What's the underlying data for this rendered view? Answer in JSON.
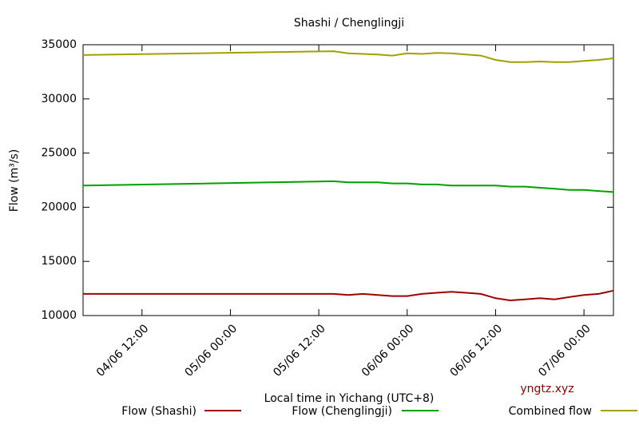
{
  "chart_data": {
    "type": "line",
    "title": "Shashi / Chenglingji",
    "xlabel": "Local time in Yichang (UTC+8)",
    "ylabel": "Flow (m³/s)",
    "watermark": "yngtz.xyz",
    "x": [
      "04/06 04:00",
      "05/06 14:00",
      "05/06 16:00",
      "05/06 18:00",
      "05/06 20:00",
      "05/06 22:00",
      "06/06 00:00",
      "06/06 02:00",
      "06/06 04:00",
      "06/06 06:00",
      "06/06 08:00",
      "06/06 10:00",
      "06/06 12:00",
      "06/06 14:00",
      "06/06 16:00",
      "06/06 18:00",
      "06/06 20:00",
      "06/06 22:00",
      "07/06 00:00",
      "07/06 02:00",
      "07/06 04:00"
    ],
    "xlim": [
      "04/06 04:00",
      "07/06 04:00"
    ],
    "xticks": [
      "04/06 12:00",
      "05/06 00:00",
      "05/06 12:00",
      "06/06 00:00",
      "06/06 12:00",
      "07/06 00:00"
    ],
    "ylim": [
      10000,
      35000
    ],
    "yticks": [
      10000,
      15000,
      20000,
      25000,
      30000,
      35000
    ],
    "series": [
      {
        "name": "Flow (Shashi)",
        "color": "#a00000",
        "values": [
          12000,
          12000,
          11900,
          12000,
          11900,
          11800,
          11800,
          12000,
          12100,
          12200,
          12100,
          12000,
          11600,
          11400,
          11500,
          11600,
          11500,
          11700,
          11900,
          12000,
          12300
        ]
      },
      {
        "name": "Flow (Chenglingji)",
        "color": "#00a000",
        "values": [
          22000,
          22400,
          22300,
          22300,
          22300,
          22200,
          22200,
          22100,
          22100,
          22000,
          22000,
          22000,
          22000,
          21900,
          21900,
          21800,
          21700,
          21600,
          21600,
          21500,
          21400
        ]
      },
      {
        "name": "Combined flow",
        "color": "#a0a000",
        "values": [
          34050,
          34400,
          34200,
          34150,
          34100,
          34000,
          34200,
          34150,
          34250,
          34200,
          34100,
          34000,
          33600,
          33400,
          33400,
          33450,
          33400,
          33400,
          33500,
          33600,
          33750
        ]
      }
    ]
  }
}
